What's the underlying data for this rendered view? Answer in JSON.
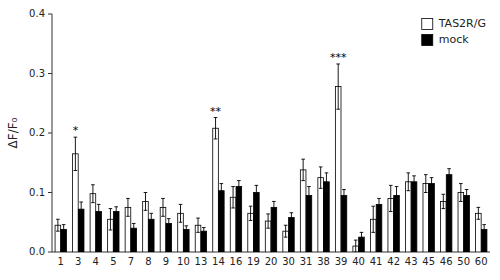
{
  "chart_data": {
    "type": "bar",
    "categories": [
      "1",
      "3",
      "4",
      "5",
      "7",
      "8",
      "9",
      "10",
      "13",
      "14",
      "16",
      "19",
      "20",
      "30",
      "31",
      "38",
      "39",
      "40",
      "41",
      "42",
      "43",
      "45",
      "46",
      "50",
      "60"
    ],
    "series": [
      {
        "name": "TAS2R/G",
        "color": "white",
        "values": [
          0.045,
          0.165,
          0.098,
          0.055,
          0.075,
          0.085,
          0.075,
          0.065,
          0.045,
          0.208,
          0.092,
          0.065,
          0.052,
          0.035,
          0.138,
          0.125,
          0.278,
          0.01,
          0.055,
          0.09,
          0.118,
          0.115,
          0.085,
          0.1,
          0.065
        ],
        "errors": [
          0.01,
          0.028,
          0.015,
          0.018,
          0.015,
          0.015,
          0.015,
          0.015,
          0.012,
          0.018,
          0.018,
          0.012,
          0.012,
          0.01,
          0.018,
          0.018,
          0.038,
          0.01,
          0.022,
          0.022,
          0.015,
          0.015,
          0.012,
          0.015,
          0.01
        ]
      },
      {
        "name": "mock",
        "color": "black",
        "values": [
          0.038,
          0.072,
          0.068,
          0.068,
          0.04,
          0.055,
          0.048,
          0.038,
          0.035,
          0.103,
          0.11,
          0.1,
          0.075,
          0.058,
          0.095,
          0.118,
          0.095,
          0.025,
          0.08,
          0.095,
          0.118,
          0.115,
          0.13,
          0.095,
          0.038
        ],
        "errors": [
          0.008,
          0.012,
          0.012,
          0.008,
          0.008,
          0.01,
          0.008,
          0.006,
          0.006,
          0.012,
          0.01,
          0.012,
          0.01,
          0.008,
          0.015,
          0.015,
          0.01,
          0.008,
          0.01,
          0.015,
          0.01,
          0.01,
          0.01,
          0.01,
          0.008
        ]
      }
    ],
    "y_label": "ΔF/F₀",
    "ylim": [
      0,
      0.4
    ],
    "yticks": [
      {
        "value": 0,
        "label": "0.0"
      },
      0.1,
      0.2,
      0.3,
      0.4
    ],
    "legend": "upper right",
    "annotations": [
      {
        "text": "*",
        "category": "3"
      },
      {
        "text": "**",
        "category": "14"
      },
      {
        "text": "***",
        "category": "39"
      }
    ]
  }
}
